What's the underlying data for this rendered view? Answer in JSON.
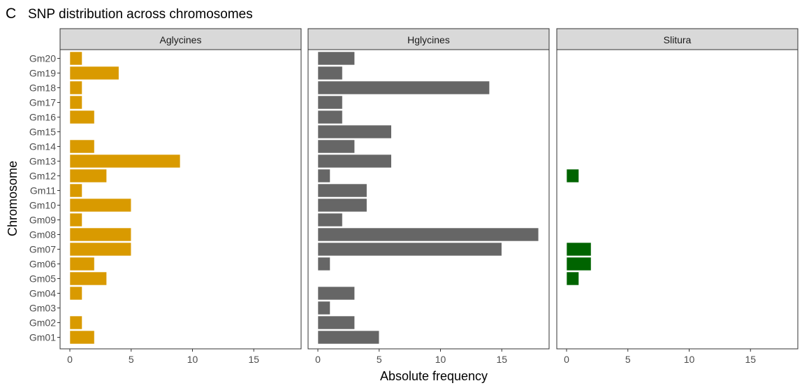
{
  "figure_letter": "C",
  "chart_data": {
    "type": "bar",
    "orientation": "horizontal",
    "title": "SNP distribution across chromosomes",
    "xlabel": "Absolute frequency",
    "ylabel": "Chromosome",
    "xlim": [
      0,
      18
    ],
    "xticks": [
      0,
      5,
      10,
      15
    ],
    "grid": false,
    "categories": [
      "Gm01",
      "Gm02",
      "Gm03",
      "Gm04",
      "Gm05",
      "Gm06",
      "Gm07",
      "Gm08",
      "Gm09",
      "Gm10",
      "Gm11",
      "Gm12",
      "Gm13",
      "Gm14",
      "Gm15",
      "Gm16",
      "Gm17",
      "Gm18",
      "Gm19",
      "Gm20"
    ],
    "series": [
      {
        "name": "Aglycines",
        "color": "#d99a00",
        "values": [
          2,
          1,
          0,
          1,
          3,
          2,
          5,
          5,
          1,
          5,
          1,
          3,
          9,
          2,
          0,
          2,
          1,
          1,
          4,
          1
        ]
      },
      {
        "name": "Hglycines",
        "color": "#666666",
        "values": [
          5,
          3,
          1,
          3,
          0,
          1,
          15,
          18,
          2,
          4,
          4,
          1,
          6,
          3,
          6,
          2,
          2,
          14,
          2,
          3
        ]
      },
      {
        "name": "Slitura",
        "color": "#006400",
        "values": [
          0,
          0,
          0,
          0,
          1,
          2,
          2,
          0,
          0,
          0,
          0,
          1,
          0,
          0,
          0,
          0,
          0,
          0,
          0,
          0
        ]
      }
    ]
  }
}
